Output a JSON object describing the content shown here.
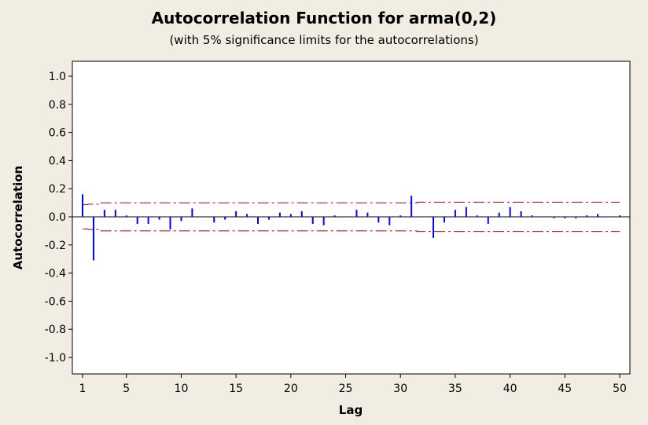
{
  "chart_data": {
    "type": "bar",
    "title": "Autocorrelation Function for arma(0,2)",
    "subtitle": "(with 5% significance limits for the autocorrelations)",
    "xlabel": "Lag",
    "ylabel": "Autocorrelation",
    "xlim": [
      1,
      50
    ],
    "ylim": [
      -1.0,
      1.0
    ],
    "x_ticks": [
      1,
      5,
      10,
      15,
      20,
      25,
      30,
      35,
      40,
      45,
      50
    ],
    "y_ticks": [
      "1.0",
      "0.8",
      "0.6",
      "0.4",
      "0.2",
      "0.0",
      "-0.2",
      "-0.4",
      "-0.6",
      "-0.8",
      "-1.0"
    ],
    "lags": [
      1,
      2,
      3,
      4,
      5,
      6,
      7,
      8,
      9,
      10,
      11,
      12,
      13,
      14,
      15,
      16,
      17,
      18,
      19,
      20,
      21,
      22,
      23,
      24,
      25,
      26,
      27,
      28,
      29,
      30,
      31,
      32,
      33,
      34,
      35,
      36,
      37,
      38,
      39,
      40,
      41,
      42,
      43,
      44,
      45,
      46,
      47,
      48,
      49,
      50
    ],
    "values": [
      0.16,
      -0.31,
      0.05,
      0.05,
      0.01,
      -0.05,
      -0.05,
      -0.02,
      -0.09,
      -0.03,
      0.06,
      0.0,
      -0.04,
      -0.02,
      0.04,
      0.02,
      -0.05,
      -0.02,
      0.03,
      0.02,
      0.04,
      -0.05,
      -0.06,
      0.01,
      0.0,
      0.05,
      0.03,
      -0.04,
      -0.06,
      0.01,
      0.15,
      0.0,
      -0.15,
      -0.04,
      0.05,
      0.07,
      0.01,
      -0.05,
      0.03,
      0.07,
      0.04,
      0.01,
      0.0,
      -0.01,
      -0.01,
      -0.01,
      0.01,
      0.02,
      0.0,
      0.01
    ],
    "significance_limits": {
      "upper": [
        0.087,
        0.09,
        0.1,
        0.1,
        0.1,
        0.1,
        0.1,
        0.1,
        0.1,
        0.1,
        0.1,
        0.1,
        0.1,
        0.1,
        0.1,
        0.1,
        0.1,
        0.1,
        0.1,
        0.1,
        0.1,
        0.1,
        0.1,
        0.1,
        0.1,
        0.1,
        0.1,
        0.1,
        0.1,
        0.1,
        0.1,
        0.104,
        0.104,
        0.104,
        0.104,
        0.104,
        0.104,
        0.104,
        0.104,
        0.104,
        0.104,
        0.104,
        0.104,
        0.104,
        0.104,
        0.104,
        0.104,
        0.104,
        0.104,
        0.104
      ],
      "lower": [
        -0.087,
        -0.09,
        -0.1,
        -0.1,
        -0.1,
        -0.1,
        -0.1,
        -0.1,
        -0.1,
        -0.1,
        -0.1,
        -0.1,
        -0.1,
        -0.1,
        -0.1,
        -0.1,
        -0.1,
        -0.1,
        -0.1,
        -0.1,
        -0.1,
        -0.1,
        -0.1,
        -0.1,
        -0.1,
        -0.1,
        -0.1,
        -0.1,
        -0.1,
        -0.1,
        -0.1,
        -0.104,
        -0.104,
        -0.104,
        -0.104,
        -0.104,
        -0.104,
        -0.104,
        -0.104,
        -0.104,
        -0.104,
        -0.104,
        -0.104,
        -0.104,
        -0.104,
        -0.104,
        -0.104,
        -0.104,
        -0.104,
        -0.104
      ]
    },
    "grid": false,
    "legend": "none",
    "colors": {
      "bars": "#0000ff",
      "limits": "#c00000",
      "background": "#f1ede3",
      "plot_area": "#ffffff"
    }
  }
}
